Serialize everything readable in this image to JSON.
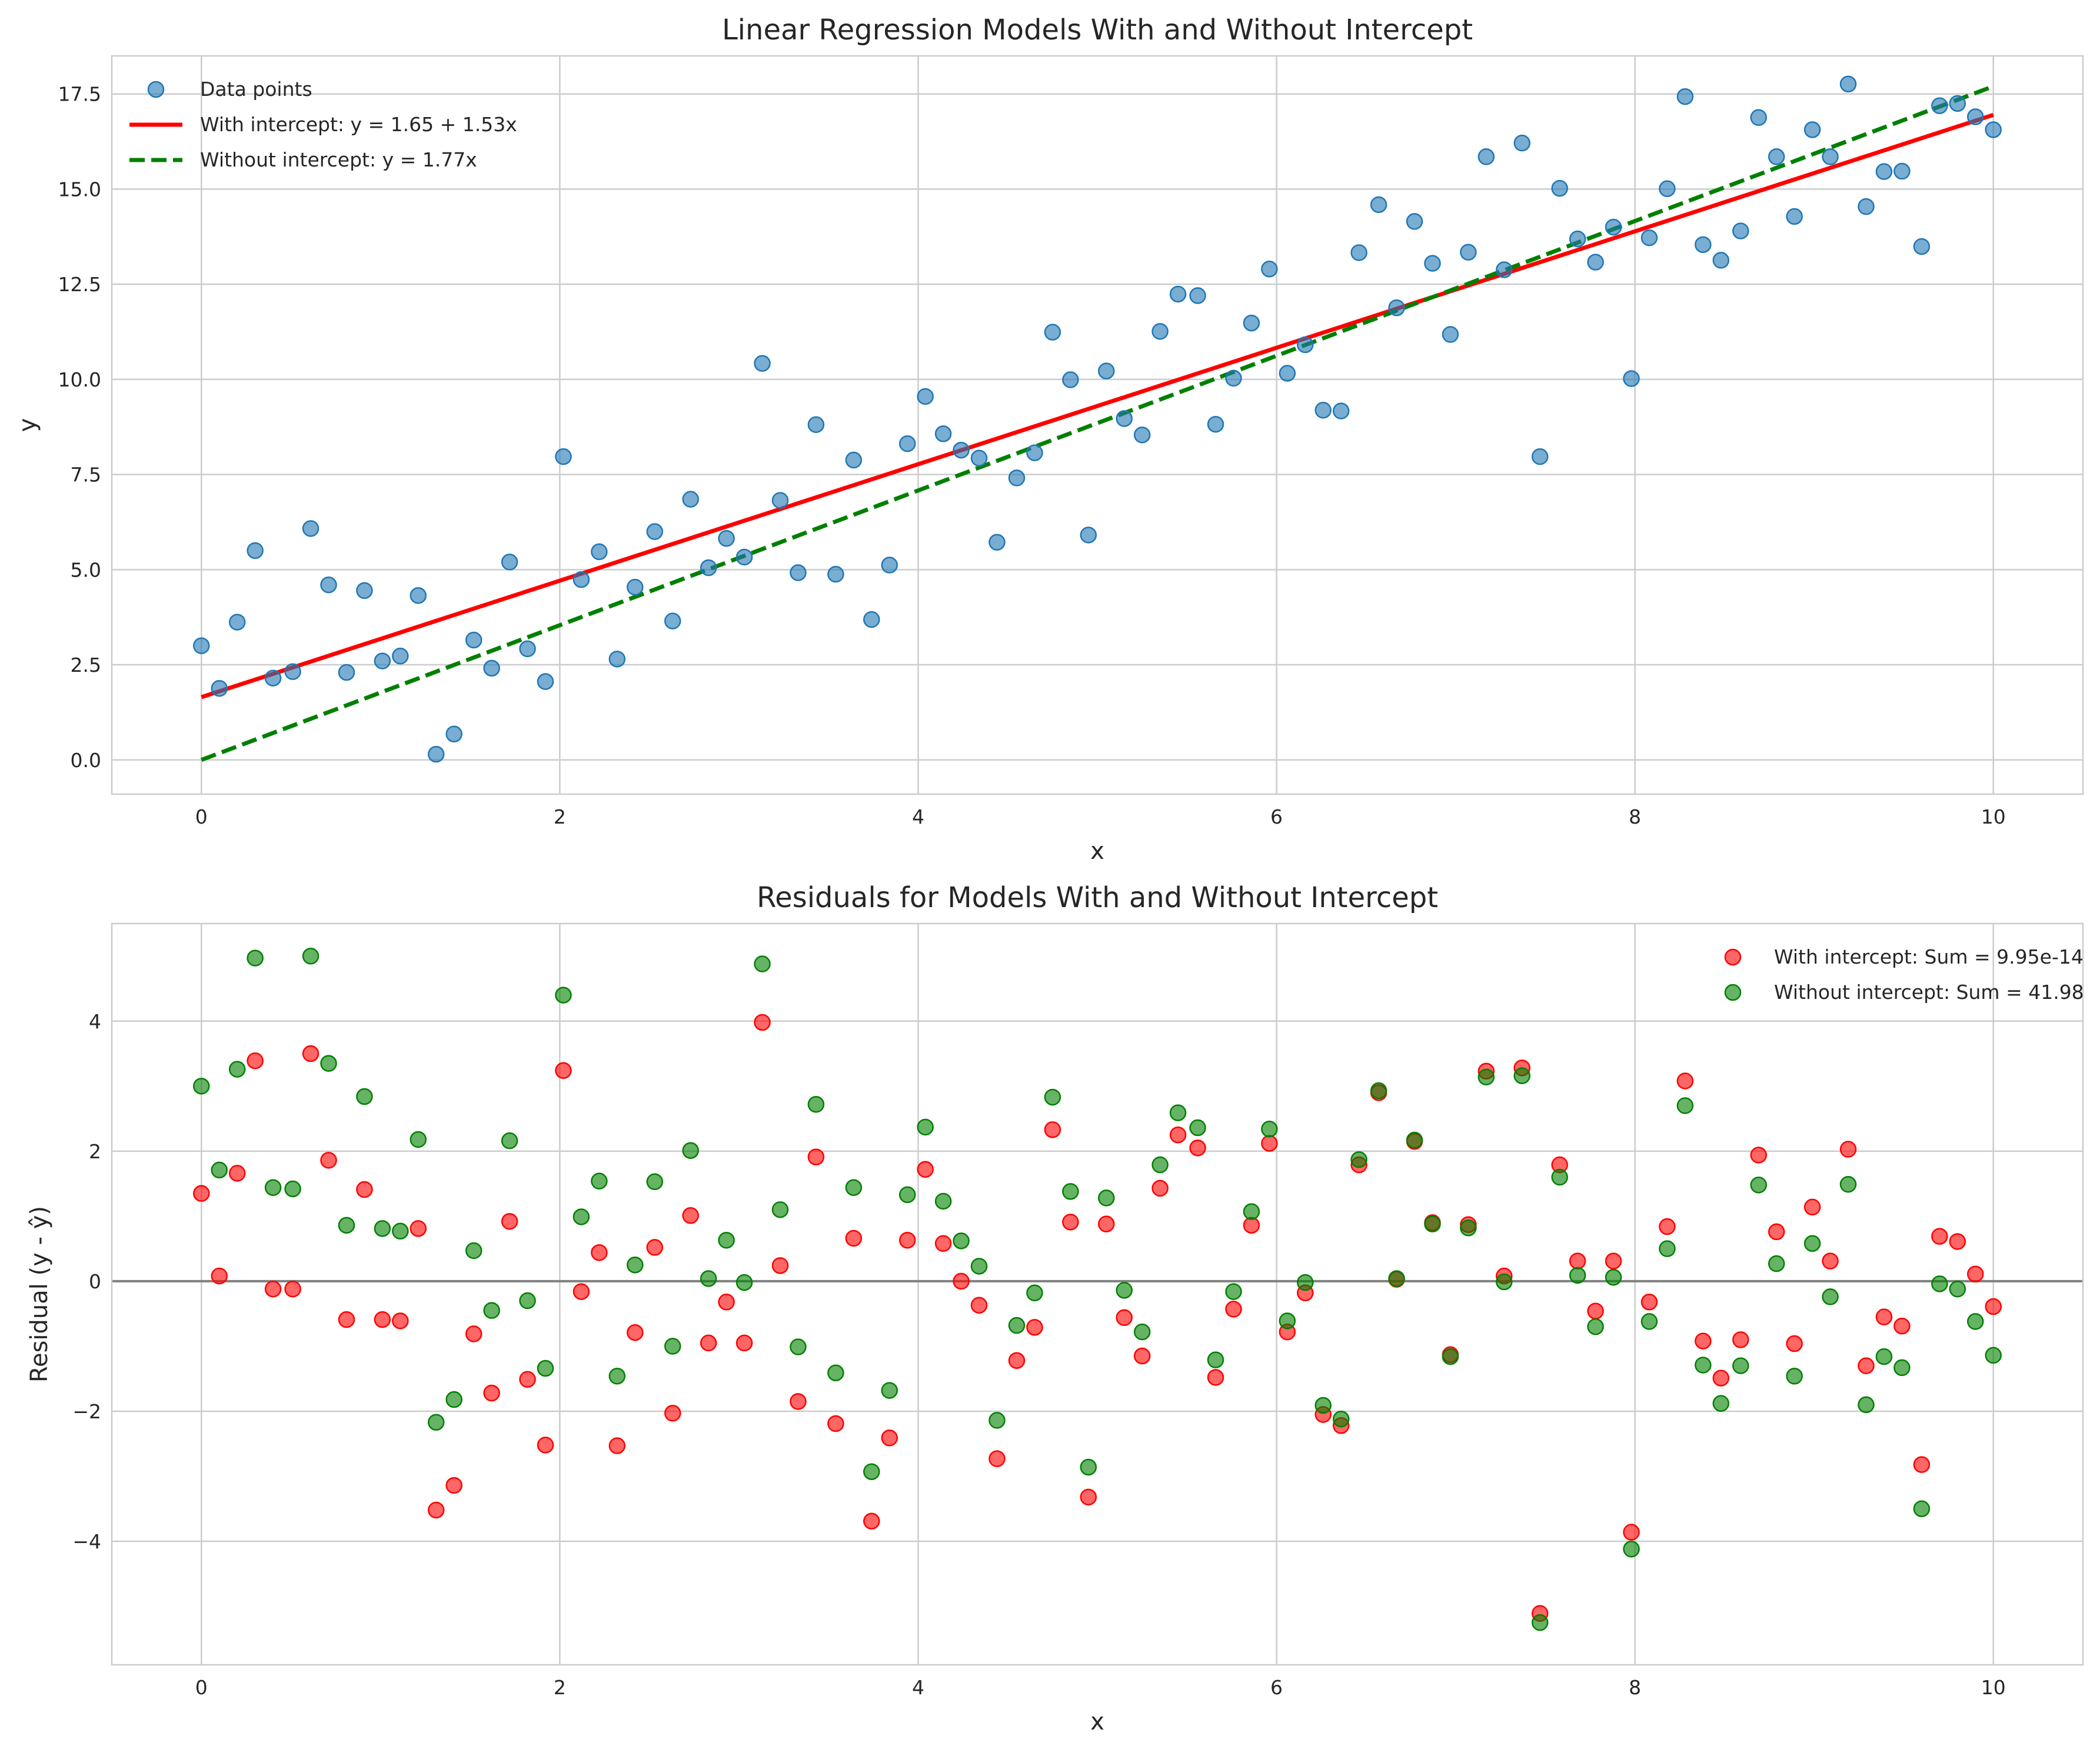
{
  "chart_data": [
    {
      "type": "scatter",
      "title": "Linear Regression Models With and Without Intercept",
      "xlabel": "x",
      "ylabel": "y",
      "xlim": [
        -0.5,
        10.5
      ],
      "ylim": [
        -0.9,
        18.5
      ],
      "xticks": [
        0,
        2,
        4,
        6,
        8,
        10
      ],
      "yticks": [
        0.0,
        2.5,
        5.0,
        7.5,
        10.0,
        12.5,
        15.0,
        17.5
      ],
      "ytick_labels": [
        "0.0",
        "2.5",
        "5.0",
        "7.5",
        "10.0",
        "12.5",
        "15.0",
        "17.5"
      ],
      "grid": true,
      "legend_position": "top-left",
      "colors": {
        "points": "#1f77b4",
        "with_intercept": "#ff0000",
        "without_intercept": "#008000"
      },
      "legend": [
        {
          "label": "Data points",
          "kind": "marker"
        },
        {
          "label": "With intercept: y = 1.65 + 1.53x",
          "kind": "solid"
        },
        {
          "label": "Without intercept: y = 1.77x",
          "kind": "dashed"
        }
      ],
      "lines": [
        {
          "name": "With intercept: y = 1.65 + 1.53x",
          "intercept": 1.65,
          "slope": 1.53,
          "style": "solid",
          "x_range": [
            0,
            10
          ]
        },
        {
          "name": "Without intercept: y = 1.77x",
          "intercept": 0,
          "slope": 1.77,
          "style": "dashed",
          "x_range": [
            0,
            10
          ]
        }
      ],
      "x": [
        0.0,
        0.1,
        0.2,
        0.3,
        0.4,
        0.51,
        0.61,
        0.71,
        0.81,
        0.91,
        1.01,
        1.11,
        1.21,
        1.31,
        1.41,
        1.52,
        1.62,
        1.72,
        1.82,
        1.92,
        2.02,
        2.12,
        2.22,
        2.32,
        2.42,
        2.53,
        2.63,
        2.73,
        2.83,
        2.93,
        3.03,
        3.13,
        3.23,
        3.33,
        3.43,
        3.54,
        3.64,
        3.74,
        3.84,
        3.94,
        4.04,
        4.14,
        4.24,
        4.34,
        4.44,
        4.55,
        4.65,
        4.75,
        4.85,
        4.95,
        5.05,
        5.15,
        5.25,
        5.35,
        5.45,
        5.56,
        5.66,
        5.76,
        5.86,
        5.96,
        6.06,
        6.16,
        6.26,
        6.36,
        6.46,
        6.57,
        6.67,
        6.77,
        6.87,
        6.97,
        7.07,
        7.17,
        7.27,
        7.37,
        7.47,
        7.58,
        7.68,
        7.78,
        7.88,
        7.98,
        8.08,
        8.18,
        8.28,
        8.38,
        8.48,
        8.59,
        8.69,
        8.79,
        8.89,
        8.99,
        9.09,
        9.19,
        9.29,
        9.39,
        9.49,
        9.6,
        9.7,
        9.8,
        9.9,
        10.0
      ],
      "y": [
        3.0,
        1.88,
        3.62,
        5.5,
        2.15,
        2.32,
        6.08,
        4.6,
        2.3,
        4.45,
        2.6,
        2.73,
        4.32,
        0.15,
        0.68,
        3.15,
        2.41,
        5.2,
        2.92,
        2.06,
        7.97,
        4.74,
        5.47,
        2.65,
        4.54,
        6.0,
        3.65,
        6.85,
        5.05,
        5.82,
        5.33,
        10.42,
        6.82,
        4.92,
        8.81,
        4.88,
        7.88,
        3.69,
        5.12,
        8.31,
        9.55,
        8.57,
        8.14,
        7.93,
        5.72,
        7.41,
        8.07,
        11.24,
        9.99,
        5.91,
        10.22,
        8.97,
        8.54,
        11.26,
        12.24,
        12.2,
        8.82,
        10.03,
        11.48,
        12.9,
        10.16,
        10.91,
        9.19,
        9.17,
        13.33,
        14.59,
        11.88,
        14.15,
        13.05,
        11.18,
        13.34,
        15.85,
        12.88,
        16.21,
        7.97,
        15.02,
        13.69,
        13.08,
        14.0,
        10.02,
        13.72,
        15.01,
        17.43,
        13.54,
        13.13,
        13.9,
        16.88,
        15.85,
        14.28,
        16.56,
        15.85,
        17.76,
        14.54,
        15.46,
        15.47,
        13.49,
        17.19,
        17.25,
        16.9,
        16.56
      ]
    },
    {
      "type": "scatter",
      "title": "Residuals for Models With and Without Intercept",
      "xlabel": "x",
      "ylabel": "Residual (y - ŷ)",
      "xlim": [
        -0.5,
        10.5
      ],
      "ylim": [
        -5.9,
        5.5
      ],
      "xticks": [
        0,
        2,
        4,
        6,
        8,
        10
      ],
      "yticks": [
        -4,
        -2,
        0,
        2,
        4
      ],
      "ytick_labels": [
        "−4",
        "−2",
        "0",
        "2",
        "4"
      ],
      "zero_line": true,
      "grid": true,
      "legend_position": "top-right",
      "colors": {
        "with_intercept": "#ff0000",
        "without_intercept": "#008000",
        "zero_line": "#808080"
      },
      "series": [
        {
          "name": "With intercept: Sum = 9.95e-14",
          "values": [
            1.35,
            0.08,
            1.66,
            3.39,
            -0.12,
            -0.12,
            3.5,
            1.86,
            -0.59,
            1.41,
            -0.59,
            -0.61,
            0.81,
            -3.52,
            -3.14,
            -0.81,
            -1.72,
            0.92,
            -1.51,
            -2.52,
            3.24,
            -0.16,
            0.44,
            -2.53,
            -0.79,
            0.52,
            -2.03,
            1.01,
            -0.95,
            -0.32,
            -0.95,
            3.98,
            0.24,
            -1.85,
            1.91,
            -2.19,
            0.66,
            -3.69,
            -2.41,
            0.63,
            1.72,
            0.58,
            0.0,
            -0.37,
            -2.73,
            -1.22,
            -0.71,
            2.33,
            0.91,
            -3.32,
            0.88,
            -0.56,
            -1.15,
            1.43,
            2.25,
            2.05,
            -1.48,
            -0.43,
            0.86,
            2.12,
            -0.78,
            -0.18,
            -2.05,
            -2.22,
            1.79,
            2.9,
            0.03,
            2.15,
            0.9,
            -1.13,
            0.87,
            3.23,
            0.08,
            3.28,
            -5.11,
            1.79,
            0.31,
            -0.46,
            0.31,
            -3.86,
            -0.32,
            0.84,
            3.08,
            -0.92,
            -1.49,
            -0.9,
            1.94,
            0.76,
            -0.96,
            1.14,
            0.31,
            2.03,
            -1.3,
            -0.55,
            -0.69,
            -2.82,
            0.69,
            0.61,
            0.11,
            -0.39
          ]
        },
        {
          "name": "Without intercept: Sum = 41.98",
          "values": [
            3.0,
            1.71,
            3.26,
            4.97,
            1.44,
            1.42,
            5.0,
            3.35,
            0.86,
            2.84,
            0.81,
            0.77,
            2.18,
            -2.17,
            -1.82,
            0.47,
            -0.45,
            2.16,
            -0.3,
            -1.34,
            4.4,
            0.99,
            1.54,
            -1.46,
            0.25,
            1.53,
            -1.0,
            2.01,
            0.04,
            0.63,
            -0.02,
            4.88,
            1.1,
            -1.01,
            2.72,
            -1.41,
            1.44,
            -2.93,
            -1.68,
            1.33,
            2.37,
            1.23,
            0.62,
            0.23,
            -2.14,
            -0.68,
            -0.18,
            2.83,
            1.38,
            -2.86,
            1.28,
            -0.14,
            -0.78,
            1.79,
            2.59,
            2.36,
            -1.21,
            -0.16,
            1.07,
            2.34,
            -0.61,
            -0.02,
            -1.91,
            -2.12,
            1.87,
            2.93,
            0.04,
            2.17,
            0.88,
            -1.16,
            0.82,
            3.14,
            -0.01,
            3.16,
            -5.25,
            1.6,
            0.09,
            -0.7,
            0.06,
            -4.12,
            -0.62,
            0.5,
            2.7,
            -1.29,
            -1.88,
            -1.3,
            1.48,
            0.27,
            -1.46,
            0.58,
            -0.24,
            1.49,
            -1.9,
            -1.16,
            -1.33,
            -3.5,
            -0.04,
            -0.12,
            -0.62,
            -1.14
          ]
        }
      ]
    }
  ]
}
